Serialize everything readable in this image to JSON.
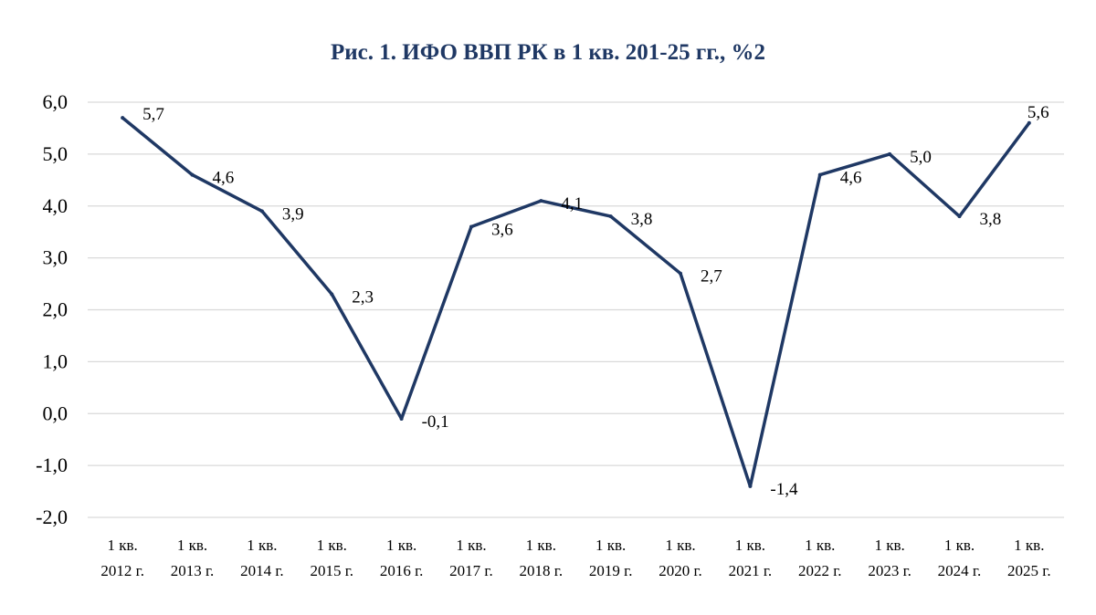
{
  "chart_data": {
    "type": "line",
    "title": "Рис. 1. ИФО ВВП РК в 1 кв. 201-25 гг., %2",
    "categories": [
      [
        "1 кв.",
        "2012 г."
      ],
      [
        "1 кв.",
        "2013 г."
      ],
      [
        "1 кв.",
        "2014 г."
      ],
      [
        "1 кв.",
        "2015 г."
      ],
      [
        "1 кв.",
        "2016 г."
      ],
      [
        "1 кв.",
        "2017 г."
      ],
      [
        "1 кв.",
        "2018 г."
      ],
      [
        "1 кв.",
        "2019 г."
      ],
      [
        "1 кв.",
        "2020 г."
      ],
      [
        "1 кв.",
        "2021 г."
      ],
      [
        "1 кв.",
        "2022 г."
      ],
      [
        "1 кв.",
        "2023 г."
      ],
      [
        "1 кв.",
        "2024 г."
      ],
      [
        "1 кв.",
        "2025 г."
      ]
    ],
    "values": [
      5.7,
      4.6,
      3.9,
      2.3,
      -0.1,
      3.6,
      4.1,
      3.8,
      2.7,
      -1.4,
      4.6,
      5.0,
      3.8,
      5.6
    ],
    "data_labels": [
      "5,7",
      "4,6",
      "3,9",
      "2,3",
      "-0,1",
      "3,6",
      "4,1",
      "3,8",
      "2,7",
      "-1,4",
      "4,6",
      "5,0",
      "3,8",
      "5,6"
    ],
    "yticks": [
      "-2,0",
      "-1,0",
      "0,0",
      "1,0",
      "2,0",
      "3,0",
      "4,0",
      "5,0",
      "6,0"
    ],
    "ylim": [
      -2,
      6
    ],
    "grid": true,
    "legend": "none",
    "line_color": "#1f3864",
    "title_color": "#1f3864",
    "grid_color": "#d9d9d9"
  }
}
